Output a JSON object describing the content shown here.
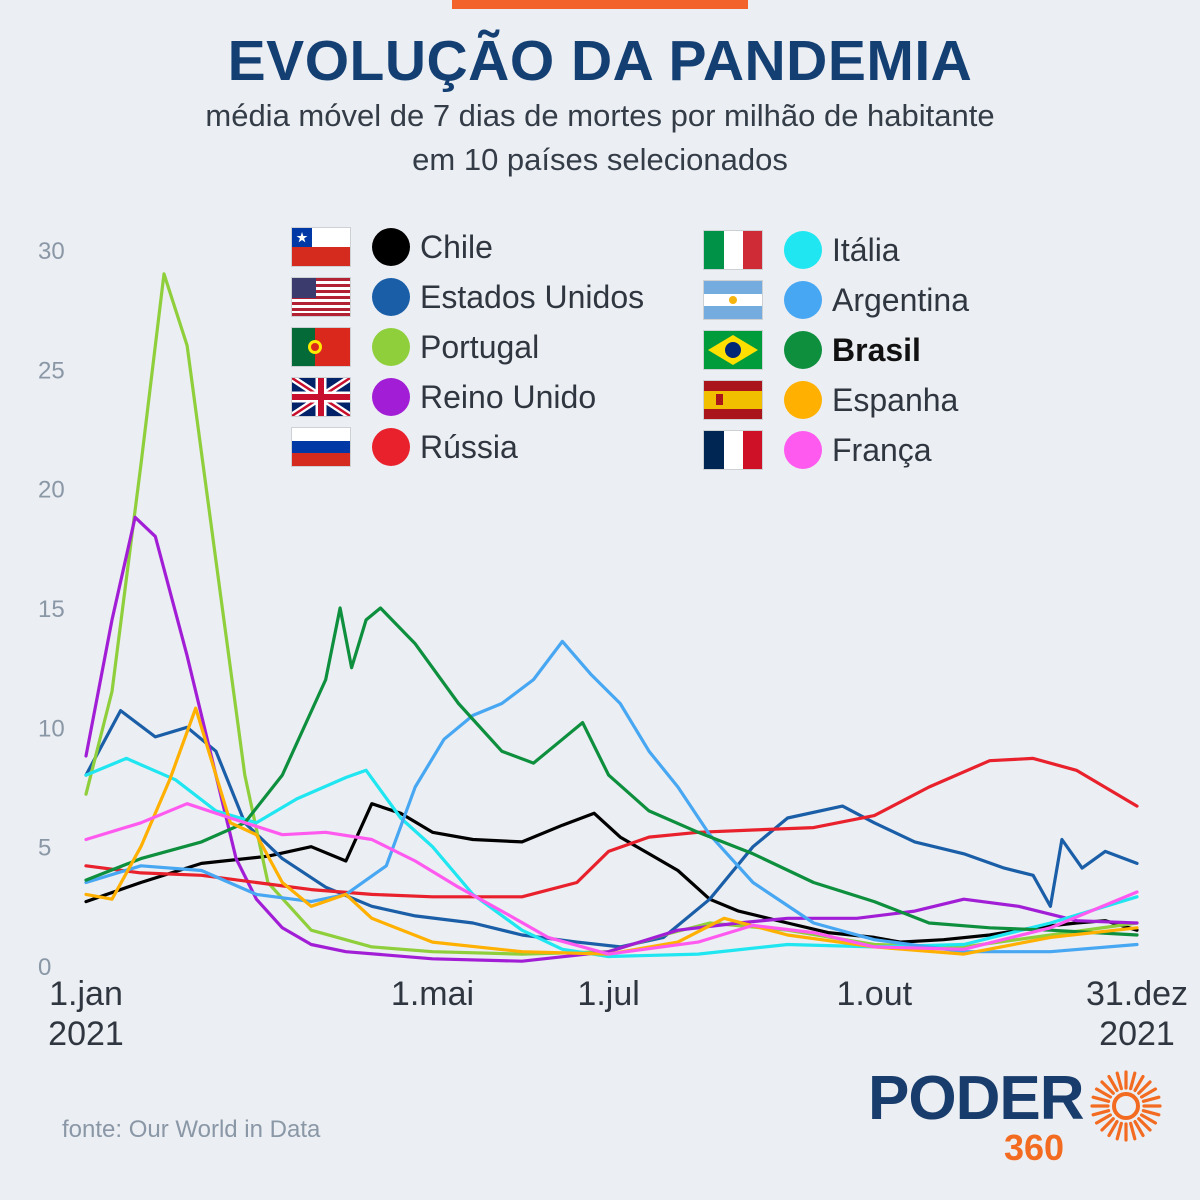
{
  "title": "EVOLUÇÃO DA PANDEMIA",
  "subtitle_line1": "média móvel de 7 dias de mortes por milhão de habitante",
  "subtitle_line2": "em 10 países selecionados",
  "source": "fonte: Our World in Data",
  "logo": {
    "text": "PODER",
    "sub": "360"
  },
  "colors": {
    "title": "#143f73",
    "accent": "#f3622a",
    "axis_text": "#8a97a6",
    "logo_blue": "#183c6b",
    "logo_orange": "#f26b21"
  },
  "legend": [
    {
      "label": "Chile",
      "color": "#000000",
      "flag": "chile-flag-icon",
      "bold": false
    },
    {
      "label": "Estados Unidos",
      "color": "#1a5ea8",
      "flag": "usa-flag-icon",
      "bold": false
    },
    {
      "label": "Portugal",
      "color": "#8fcf3c",
      "flag": "portugal-flag-icon",
      "bold": false
    },
    {
      "label": "Reino Unido",
      "color": "#a21ed6",
      "flag": "uk-flag-icon",
      "bold": false
    },
    {
      "label": "Rússia",
      "color": "#e8212c",
      "flag": "russia-flag-icon",
      "bold": false
    },
    {
      "label": "Itália",
      "color": "#1fe6f0",
      "flag": "italy-flag-icon",
      "bold": false
    },
    {
      "label": "Argentina",
      "color": "#47a7f2",
      "flag": "argentina-flag-icon",
      "bold": false
    },
    {
      "label": "Brasil",
      "color": "#0d8f3e",
      "flag": "brazil-flag-icon",
      "bold": true
    },
    {
      "label": "Espanha",
      "color": "#ffb000",
      "flag": "spain-flag-icon",
      "bold": false
    },
    {
      "label": "França",
      "color": "#ff5af0",
      "flag": "france-flag-icon",
      "bold": false
    }
  ],
  "chart_data": {
    "type": "line",
    "title": "EVOLUÇÃO DA PANDEMIA",
    "subtitle": "média móvel de 7 dias de mortes por milhão de habitante em 10 países selecionados",
    "xlabel": "",
    "ylabel": "",
    "ylim": [
      0,
      30
    ],
    "xlim": [
      "2021-01-01",
      "2021-12-31"
    ],
    "yticks": [
      0,
      5,
      10,
      15,
      20,
      25,
      30
    ],
    "xticks": [
      {
        "date": "2021-01-01",
        "label": "1.jan",
        "sublabel": "2021"
      },
      {
        "date": "2021-05-01",
        "label": "1.mai",
        "sublabel": ""
      },
      {
        "date": "2021-07-01",
        "label": "1.jul",
        "sublabel": ""
      },
      {
        "date": "2021-10-01",
        "label": "1.out",
        "sublabel": ""
      },
      {
        "date": "2021-12-31",
        "label": "31.dez",
        "sublabel": "2021"
      }
    ],
    "grid": false,
    "legend_position": "top",
    "series": [
      {
        "name": "Chile",
        "color": "#000000",
        "x": [
          "2021-01-01",
          "2021-01-20",
          "2021-02-10",
          "2021-03-05",
          "2021-03-20",
          "2021-04-01",
          "2021-04-10",
          "2021-04-20",
          "2021-05-01",
          "2021-05-15",
          "2021-06-01",
          "2021-06-15",
          "2021-06-26",
          "2021-07-05",
          "2021-07-15",
          "2021-07-25",
          "2021-08-05",
          "2021-08-15",
          "2021-09-01",
          "2021-09-15",
          "2021-10-01",
          "2021-10-10",
          "2021-10-25",
          "2021-11-10",
          "2021-11-25",
          "2021-12-10",
          "2021-12-20",
          "2021-12-31"
        ],
        "y": [
          2.7,
          3.5,
          4.3,
          4.6,
          5.0,
          4.4,
          6.8,
          6.4,
          5.6,
          5.3,
          5.2,
          5.9,
          6.4,
          5.4,
          4.7,
          4.0,
          2.8,
          2.3,
          1.8,
          1.4,
          1.2,
          1.0,
          1.1,
          1.3,
          1.6,
          1.8,
          1.9,
          1.5
        ]
      },
      {
        "name": "Estados Unidos",
        "color": "#1a5ea8",
        "x": [
          "2021-01-01",
          "2021-01-13",
          "2021-01-25",
          "2021-02-05",
          "2021-02-15",
          "2021-02-25",
          "2021-03-10",
          "2021-03-25",
          "2021-04-10",
          "2021-04-25",
          "2021-05-15",
          "2021-06-01",
          "2021-06-20",
          "2021-07-05",
          "2021-07-20",
          "2021-08-05",
          "2021-08-20",
          "2021-09-01",
          "2021-09-20",
          "2021-10-01",
          "2021-10-15",
          "2021-11-01",
          "2021-11-15",
          "2021-11-25",
          "2021-12-01",
          "2021-12-05",
          "2021-12-12",
          "2021-12-20",
          "2021-12-31"
        ],
        "y": [
          8.0,
          10.7,
          9.6,
          10.0,
          9.0,
          6.0,
          4.5,
          3.3,
          2.5,
          2.1,
          1.8,
          1.3,
          1.0,
          0.8,
          1.2,
          2.8,
          5.0,
          6.2,
          6.7,
          6.0,
          5.2,
          4.7,
          4.1,
          3.8,
          2.5,
          5.3,
          4.1,
          4.8,
          4.3
        ]
      },
      {
        "name": "Portugal",
        "color": "#8fcf3c",
        "x": [
          "2021-01-01",
          "2021-01-10",
          "2021-01-20",
          "2021-01-28",
          "2021-02-05",
          "2021-02-15",
          "2021-02-25",
          "2021-03-05",
          "2021-03-20",
          "2021-04-10",
          "2021-05-01",
          "2021-06-01",
          "2021-07-01",
          "2021-07-20",
          "2021-08-05",
          "2021-09-01",
          "2021-10-01",
          "2021-11-01",
          "2021-12-01",
          "2021-12-31"
        ],
        "y": [
          7.2,
          11.5,
          21.0,
          29.0,
          26.0,
          17.0,
          8.0,
          3.5,
          1.5,
          0.8,
          0.6,
          0.5,
          0.6,
          1.3,
          1.8,
          1.5,
          0.9,
          0.8,
          1.3,
          1.8
        ]
      },
      {
        "name": "Reino Unido",
        "color": "#a21ed6",
        "x": [
          "2021-01-01",
          "2021-01-10",
          "2021-01-18",
          "2021-01-25",
          "2021-02-05",
          "2021-02-15",
          "2021-02-22",
          "2021-03-01",
          "2021-03-10",
          "2021-03-20",
          "2021-04-01",
          "2021-05-01",
          "2021-06-01",
          "2021-07-01",
          "2021-07-25",
          "2021-08-15",
          "2021-09-01",
          "2021-09-25",
          "2021-10-15",
          "2021-11-01",
          "2021-11-20",
          "2021-12-10",
          "2021-12-31"
        ],
        "y": [
          8.8,
          14.5,
          18.8,
          18.0,
          13.0,
          8.0,
          4.5,
          2.8,
          1.6,
          0.9,
          0.6,
          0.3,
          0.2,
          0.6,
          1.5,
          1.8,
          2.0,
          2.0,
          2.3,
          2.8,
          2.5,
          1.9,
          1.8
        ]
      },
      {
        "name": "Rússia",
        "color": "#e8212c",
        "x": [
          "2021-01-01",
          "2021-01-20",
          "2021-02-10",
          "2021-03-01",
          "2021-03-20",
          "2021-04-10",
          "2021-05-01",
          "2021-06-01",
          "2021-06-20",
          "2021-07-01",
          "2021-07-15",
          "2021-08-01",
          "2021-08-20",
          "2021-09-10",
          "2021-10-01",
          "2021-10-20",
          "2021-11-10",
          "2021-11-25",
          "2021-12-10",
          "2021-12-31"
        ],
        "y": [
          4.2,
          3.9,
          3.8,
          3.5,
          3.2,
          3.0,
          2.9,
          2.9,
          3.5,
          4.8,
          5.4,
          5.6,
          5.7,
          5.8,
          6.3,
          7.5,
          8.6,
          8.7,
          8.2,
          6.7
        ]
      },
      {
        "name": "Itália",
        "color": "#1fe6f0",
        "x": [
          "2021-01-01",
          "2021-01-15",
          "2021-02-01",
          "2021-02-15",
          "2021-03-01",
          "2021-03-15",
          "2021-04-01",
          "2021-04-08",
          "2021-04-20",
          "2021-05-01",
          "2021-05-15",
          "2021-06-01",
          "2021-06-15",
          "2021-07-01",
          "2021-08-01",
          "2021-09-01",
          "2021-10-01",
          "2021-11-01",
          "2021-12-01",
          "2021-12-31"
        ],
        "y": [
          8.0,
          8.7,
          7.8,
          6.5,
          6.0,
          7.0,
          7.9,
          8.2,
          6.2,
          5.0,
          3.0,
          1.5,
          0.7,
          0.4,
          0.5,
          0.9,
          0.8,
          0.9,
          1.8,
          2.9
        ]
      },
      {
        "name": "Argentina",
        "color": "#47a7f2",
        "x": [
          "2021-01-01",
          "2021-01-20",
          "2021-02-10",
          "2021-03-01",
          "2021-03-20",
          "2021-04-01",
          "2021-04-15",
          "2021-04-25",
          "2021-05-05",
          "2021-05-15",
          "2021-05-25",
          "2021-06-05",
          "2021-06-15",
          "2021-06-25",
          "2021-07-05",
          "2021-07-15",
          "2021-07-25",
          "2021-08-05",
          "2021-08-20",
          "2021-09-10",
          "2021-10-01",
          "2021-11-01",
          "2021-12-01",
          "2021-12-31"
        ],
        "y": [
          3.5,
          4.2,
          4.0,
          3.0,
          2.7,
          3.0,
          4.2,
          7.5,
          9.5,
          10.5,
          11.0,
          12.0,
          13.6,
          12.2,
          11.0,
          9.0,
          7.5,
          5.5,
          3.5,
          1.8,
          1.1,
          0.6,
          0.6,
          0.9
        ]
      },
      {
        "name": "Brasil",
        "color": "#0d8f3e",
        "x": [
          "2021-01-01",
          "2021-01-20",
          "2021-02-10",
          "2021-02-25",
          "2021-03-10",
          "2021-03-25",
          "2021-03-30",
          "2021-04-03",
          "2021-04-08",
          "2021-04-13",
          "2021-04-25",
          "2021-05-10",
          "2021-05-25",
          "2021-06-05",
          "2021-06-15",
          "2021-06-22",
          "2021-07-01",
          "2021-07-15",
          "2021-08-01",
          "2021-08-20",
          "2021-09-10",
          "2021-10-01",
          "2021-10-20",
          "2021-11-10",
          "2021-12-01",
          "2021-12-31"
        ],
        "y": [
          3.6,
          4.5,
          5.2,
          6.0,
          8.0,
          12.0,
          15.0,
          12.5,
          14.5,
          15.0,
          13.5,
          11.0,
          9.0,
          8.5,
          9.5,
          10.2,
          8.0,
          6.5,
          5.6,
          4.7,
          3.5,
          2.7,
          1.8,
          1.6,
          1.5,
          1.3
        ]
      },
      {
        "name": "Espanha",
        "color": "#ffb000",
        "x": [
          "2021-01-01",
          "2021-01-10",
          "2021-01-20",
          "2021-01-30",
          "2021-02-08",
          "2021-02-20",
          "2021-03-01",
          "2021-03-10",
          "2021-03-20",
          "2021-04-01",
          "2021-04-10",
          "2021-05-01",
          "2021-06-01",
          "2021-07-01",
          "2021-07-25",
          "2021-08-10",
          "2021-09-01",
          "2021-10-01",
          "2021-11-01",
          "2021-12-01",
          "2021-12-31"
        ],
        "y": [
          3.0,
          2.8,
          5.0,
          7.8,
          10.8,
          6.0,
          5.5,
          3.5,
          2.5,
          3.0,
          2.0,
          1.0,
          0.6,
          0.5,
          1.0,
          2.0,
          1.3,
          0.8,
          0.5,
          1.2,
          1.6
        ]
      },
      {
        "name": "França",
        "color": "#ff5af0",
        "x": [
          "2021-01-01",
          "2021-01-20",
          "2021-02-05",
          "2021-02-20",
          "2021-03-10",
          "2021-03-25",
          "2021-04-10",
          "2021-04-25",
          "2021-05-10",
          "2021-05-25",
          "2021-06-10",
          "2021-07-01",
          "2021-08-01",
          "2021-08-20",
          "2021-09-10",
          "2021-10-01",
          "2021-11-01",
          "2021-12-01",
          "2021-12-31"
        ],
        "y": [
          5.3,
          6.0,
          6.8,
          6.2,
          5.5,
          5.6,
          5.3,
          4.4,
          3.3,
          2.3,
          1.2,
          0.5,
          1.0,
          1.7,
          1.4,
          0.8,
          0.7,
          1.6,
          3.1
        ]
      }
    ]
  }
}
